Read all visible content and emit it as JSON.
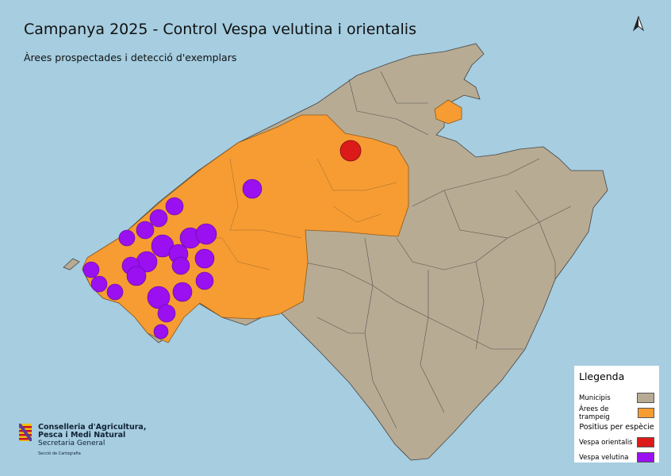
{
  "title": "Campanya 2025 - Control Vespa velutina i orientalis",
  "subtitle": "Àrees prospectades i detecció d'exemplars",
  "north_arrow": "north-arrow-icon",
  "legend": {
    "title": "Llegenda",
    "items": [
      {
        "label": "Municipis",
        "color": "#b8ab93"
      },
      {
        "label": "Àrees de trampeig",
        "color": "#f79c32"
      }
    ],
    "section": "Positius per espècie",
    "species": [
      {
        "label": "Vespa orientalis",
        "color": "#dd1a1a"
      },
      {
        "label": "Vespa velutina",
        "color": "#9a10f0"
      }
    ]
  },
  "logo": {
    "line1": "Conselleria d'Agricultura,",
    "line2": "Pesca i Medi Natural",
    "line3": "Secretaria General",
    "line4": "Secció de Cartografia"
  }
}
